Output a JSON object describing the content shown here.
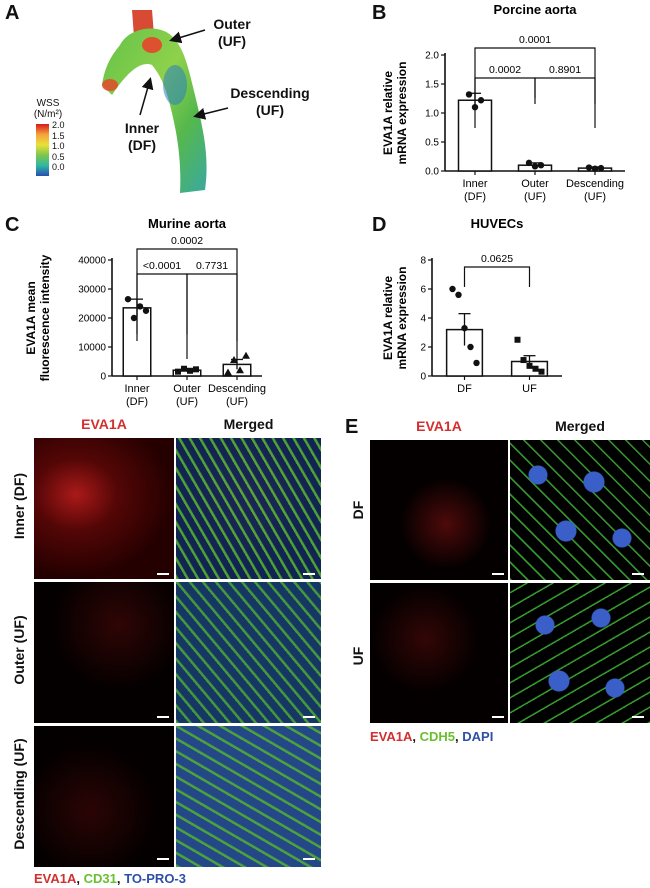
{
  "panels": {
    "A": {
      "letter": "A",
      "labels": {
        "outer_line1": "Outer",
        "outer_line2": "(UF)",
        "inner_line1": "Inner",
        "inner_line2": "(DF)",
        "desc_line1": "Descending",
        "desc_line2": "(UF)"
      },
      "colorbar": {
        "title_line1": "WSS",
        "title_line2": "(N/m²)",
        "ticks": [
          "2.0",
          "1.5",
          "1.0",
          "0.5",
          "0.0"
        ]
      }
    },
    "B": {
      "letter": "B"
    },
    "C": {
      "letter": "C"
    },
    "D": {
      "letter": "D"
    },
    "E": {
      "letter": "E"
    }
  },
  "chart_data": [
    {
      "id": "B",
      "type": "bar",
      "title": "Porcine aorta",
      "ylabel_line1": "EVA1A relative",
      "ylabel_line2": "mRNA expression",
      "ylim": [
        0,
        2.0
      ],
      "yticks": [
        "0.0",
        "0.5",
        "1.0",
        "1.5",
        "2.0"
      ],
      "categories": [
        {
          "line1": "Inner",
          "line2": "(DF)"
        },
        {
          "line1": "Outer",
          "line2": "(UF)"
        },
        {
          "line1": "Descending",
          "line2": "(UF)"
        }
      ],
      "values": [
        1.22,
        0.1,
        0.05
      ],
      "errors": [
        0.12,
        0.04,
        0.02
      ],
      "points": [
        [
          1.32,
          1.1,
          1.22
        ],
        [
          0.14,
          0.08,
          0.1
        ],
        [
          0.06,
          0.04,
          0.05
        ]
      ],
      "marker": "circle",
      "brackets": [
        {
          "from": 1,
          "to": 2,
          "label": "0.0002"
        },
        {
          "from": 2,
          "to": 3,
          "label": "0.8901"
        },
        {
          "from": 1,
          "to": 3,
          "label": "0.0001"
        }
      ]
    },
    {
      "id": "C",
      "type": "bar",
      "title": "Murine aorta",
      "ylabel_line1": "EVA1A mean",
      "ylabel_line2": "fluorescence intensity",
      "ylim": [
        0,
        40000
      ],
      "yticks": [
        "0",
        "10000",
        "20000",
        "30000",
        "40000"
      ],
      "categories": [
        {
          "line1": "Inner",
          "line2": "(DF)"
        },
        {
          "line1": "Outer",
          "line2": "(UF)"
        },
        {
          "line1": "Descending",
          "line2": "(UF)"
        }
      ],
      "values": [
        23500,
        2000,
        4000
      ],
      "errors": [
        3000,
        500,
        1700
      ],
      "points": [
        [
          26500,
          20000,
          24000,
          22500
        ],
        [
          1500,
          2500,
          1800,
          2300
        ],
        [
          1200,
          5500,
          2000,
          7000
        ]
      ],
      "markers": [
        "circle",
        "square",
        "triangle"
      ],
      "brackets": [
        {
          "from": 1,
          "to": 2,
          "label": "<0.0001"
        },
        {
          "from": 2,
          "to": 3,
          "label": "0.7731"
        },
        {
          "from": 1,
          "to": 3,
          "label": "0.0002"
        }
      ]
    },
    {
      "id": "D",
      "type": "bar",
      "title": "HUVECs",
      "ylabel_line1": "EVA1A relative",
      "ylabel_line2": "mRNA expression",
      "ylim": [
        0,
        8
      ],
      "yticks": [
        "0",
        "2",
        "4",
        "6",
        "8"
      ],
      "categories": [
        {
          "line1": "DF",
          "line2": ""
        },
        {
          "line1": "UF",
          "line2": ""
        }
      ],
      "values": [
        3.2,
        1.0
      ],
      "errors": [
        1.1,
        0.4
      ],
      "points": [
        [
          6.0,
          5.6,
          3.3,
          2.0,
          0.9
        ],
        [
          2.5,
          1.1,
          0.7,
          0.5,
          0.3
        ]
      ],
      "markers": [
        "circle",
        "square"
      ],
      "brackets": [
        {
          "from": 1,
          "to": 2,
          "label": "0.0625"
        }
      ]
    }
  ],
  "panel_c_images": {
    "col_eva1a": "EVA1A",
    "col_merged": "Merged",
    "rows": [
      "Inner (DF)",
      "Outer (UF)",
      "Descending (UF)"
    ],
    "legend": [
      {
        "text": "EVA1A",
        "color": "#d32f2f"
      },
      {
        "text": ", ",
        "color": "#111111"
      },
      {
        "text": "CD31",
        "color": "#6abf2e"
      },
      {
        "text": ", ",
        "color": "#111111"
      },
      {
        "text": "TO-PRO-3",
        "color": "#2e4fa8"
      }
    ]
  },
  "panel_e_images": {
    "col_eva1a": "EVA1A",
    "col_merged": "Merged",
    "rows": [
      "DF",
      "UF"
    ],
    "legend": [
      {
        "text": "EVA1A",
        "color": "#d32f2f"
      },
      {
        "text": ", ",
        "color": "#111111"
      },
      {
        "text": "CDH5",
        "color": "#6abf2e"
      },
      {
        "text": ", ",
        "color": "#111111"
      },
      {
        "text": "DAPI",
        "color": "#2e4fa8"
      }
    ]
  },
  "colors": {
    "eva1a_red": "#d32f2f",
    "green": "#6abf2e",
    "blue": "#2e4fa8"
  }
}
